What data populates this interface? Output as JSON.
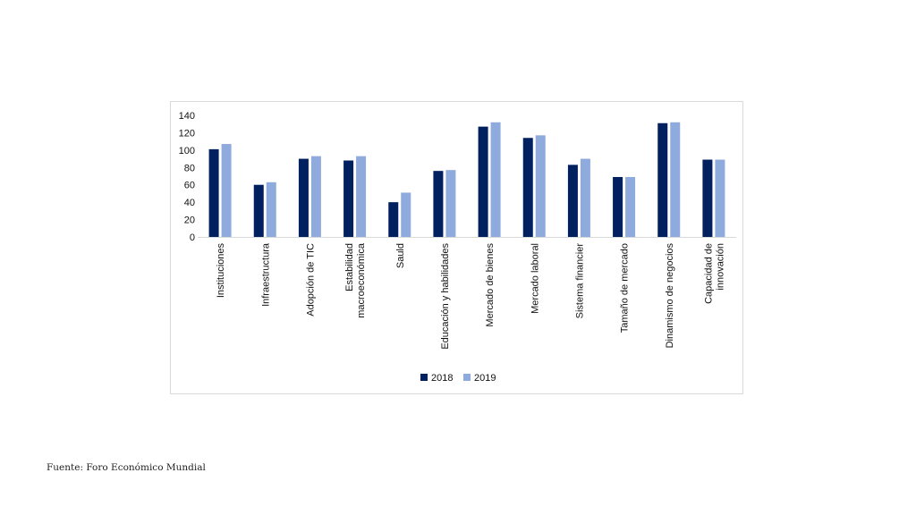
{
  "chart_data": {
    "type": "bar",
    "categories": [
      "Instituciones",
      "Infraestructura",
      "Adopción de TIC",
      "Estabilidad macroeconómica",
      "Sauld",
      "Educación y habilidades",
      "Mercado de bienes",
      "Mercado laboral",
      "Sistema financier",
      "Tamaño de mercado",
      "Dinamismo de negocios",
      "Capacidad de innovación"
    ],
    "category_lines": [
      [
        "Instituciones"
      ],
      [
        "Infraestructura"
      ],
      [
        "Adopción de TIC"
      ],
      [
        "Estabilidad",
        "macroeconómica"
      ],
      [
        "Sauld"
      ],
      [
        "Educación y habilidades"
      ],
      [
        "Mercado de bienes"
      ],
      [
        "Mercado laboral"
      ],
      [
        "Sistema financier"
      ],
      [
        "Tamaño de mercado"
      ],
      [
        "Dinamismo de negocios"
      ],
      [
        "Capacidad de",
        "innovación"
      ]
    ],
    "series": [
      {
        "name": "2018",
        "color": "#002060",
        "values": [
          101,
          60,
          90,
          88,
          40,
          76,
          127,
          114,
          83,
          69,
          131,
          89
        ]
      },
      {
        "name": "2019",
        "color": "#8faadc",
        "values": [
          107,
          63,
          93,
          93,
          51,
          77,
          132,
          117,
          90,
          69,
          132,
          89
        ]
      }
    ],
    "y_ticks": [
      "0",
      "20",
      "40",
      "60",
      "80",
      "100",
      "120",
      "140"
    ],
    "ylim": [
      0,
      140
    ],
    "grid": false,
    "legend_position": "bottom",
    "title": "",
    "xlabel": "",
    "ylabel": ""
  },
  "source": "Fuente: Foro Económico Mundial"
}
